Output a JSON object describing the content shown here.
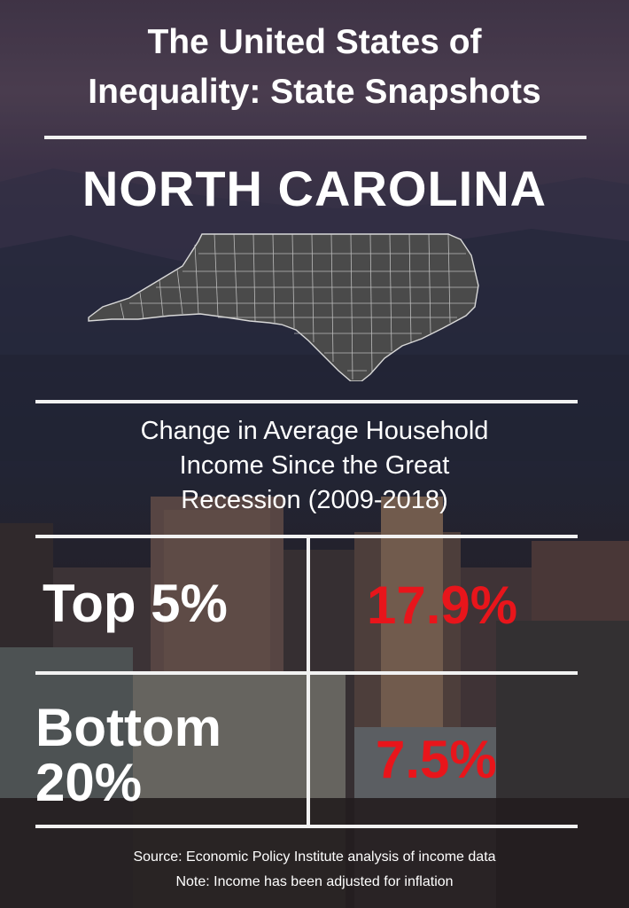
{
  "header": {
    "title_line1": "The United States of",
    "title_line2": "Inequality: State Snapshots",
    "state_name": "NORTH CAROLINA"
  },
  "section": {
    "subtitle_line1": "Change in Average Household",
    "subtitle_line2": "Income Since the Great",
    "subtitle_line3": "Recession (2009-2018)"
  },
  "table": {
    "rows": [
      {
        "label_line1": "Top 5%",
        "label_line2": "",
        "value": "17.9%"
      },
      {
        "label_line1": "Bottom",
        "label_line2": "20%",
        "value": "7.5%"
      }
    ]
  },
  "footer": {
    "source": "Source: Economic Policy Institute analysis of income data",
    "note": "Note: Income has been adjusted for inflation"
  },
  "colors": {
    "value_red": "#e8151b",
    "text_white": "#ffffff",
    "map_fill": "#4a4a4a"
  }
}
